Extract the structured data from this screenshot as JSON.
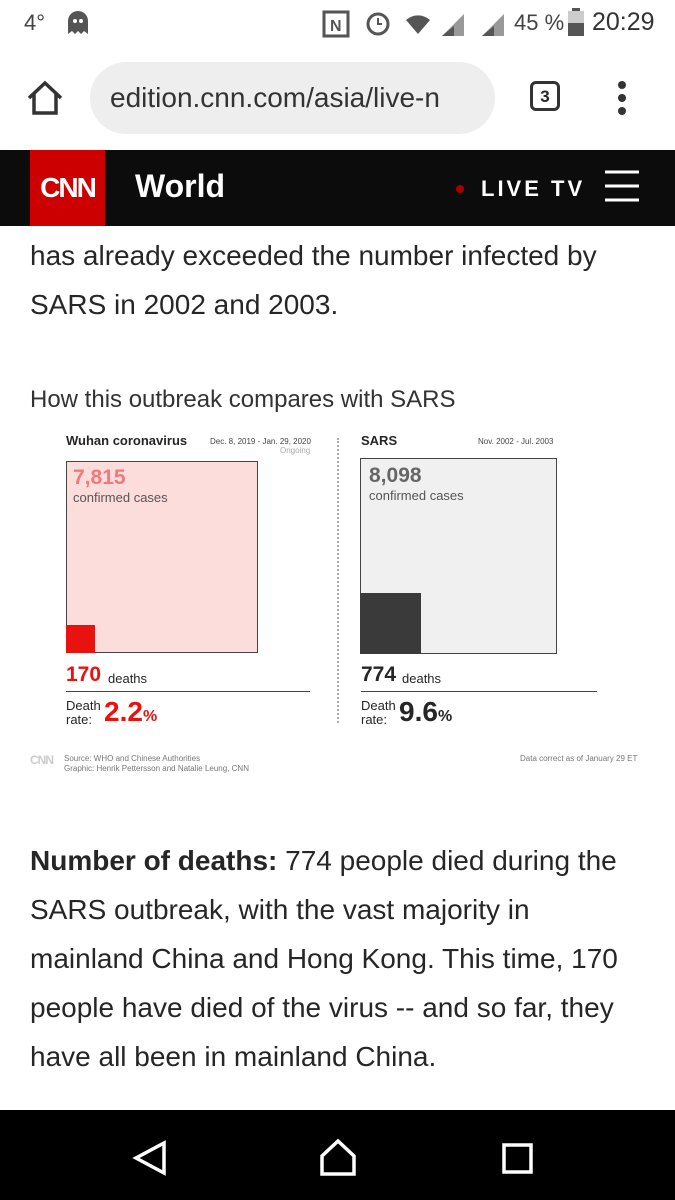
{
  "status_bar": {
    "temperature": "4°",
    "battery": "45 %",
    "time": "20:29"
  },
  "browser": {
    "url": "edition.cnn.com/asia/live-n",
    "tabs": "3"
  },
  "header": {
    "logo": "CNN",
    "section": "World",
    "live": "LIVE TV"
  },
  "article": {
    "intro": "has already exceeded the number infected by SARS in 2002 and 2003.",
    "graphic": {
      "title": "How this outbreak compares with SARS",
      "panels": [
        {
          "name": "Wuhan coronavirus",
          "dates": "Dec. 8, 2019 - Jan. 29, 2020",
          "status": "Ongoing",
          "cases": "7,815",
          "cases_label": "confirmed cases",
          "deaths": "170",
          "deaths_label": "deaths",
          "rate_label": "Death rate:",
          "rate": "2.2",
          "rate_unit": "%"
        },
        {
          "name": "SARS",
          "dates": "Nov. 2002 - Jul. 2003",
          "cases": "8,098",
          "cases_label": "confirmed cases",
          "deaths": "774",
          "deaths_label": "deaths",
          "rate_label": "Death rate:",
          "rate": "9.6",
          "rate_unit": "%"
        }
      ],
      "logo": "CNN",
      "source": "Source: WHO and Chinese Authorities",
      "credit": "Graphic: Henrik Pettersson and Natalie Leung, CNN",
      "note": "Data correct as of January 29 ET"
    },
    "paragraph": {
      "lead": "Number of deaths:",
      "text": "774 people died during the SARS outbreak, with the vast majority in mainland China and Hong Kong. This time, 170 people have died of the virus -- and so far, they have all been in mainland China."
    }
  }
}
